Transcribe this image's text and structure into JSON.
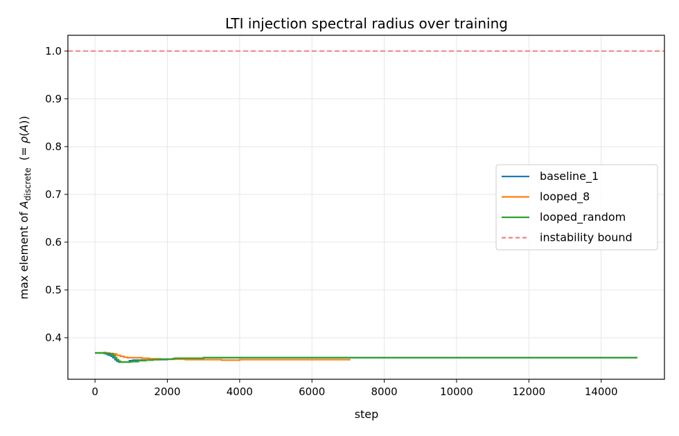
{
  "chart_data": {
    "type": "line",
    "title": "LTI injection spectral radius over training",
    "xlabel": "step",
    "ylabel_parts": {
      "prefix": "max element of ",
      "var": "A",
      "sub": "discrete",
      "suffix_open": "  (= ",
      "rho": "ρ",
      "paren_open": "(",
      "rho_arg": "A",
      "paren_close": "))"
    },
    "xlim": [
      -750,
      15750
    ],
    "ylim": [
      0.313,
      1.033
    ],
    "xticks": [
      0,
      2000,
      4000,
      6000,
      8000,
      10000,
      12000,
      14000
    ],
    "yticks": [
      0.4,
      0.5,
      0.6,
      0.7,
      0.8,
      0.9,
      1.0
    ],
    "grid": true,
    "legend_position": "center-right",
    "series": [
      {
        "name": "baseline_1",
        "color": "#1f77b4",
        "style": "solid",
        "x": [
          0,
          200,
          250,
          300,
          350,
          400,
          450,
          500,
          550,
          600,
          650,
          700,
          900,
          950,
          1000,
          1050,
          1200,
          1500,
          2000,
          2200,
          3000,
          5000,
          8000,
          12000,
          15000
        ],
        "y": [
          0.368,
          0.368,
          0.367,
          0.366,
          0.364,
          0.363,
          0.361,
          0.358,
          0.354,
          0.351,
          0.349,
          0.349,
          0.349,
          0.352,
          0.352,
          0.353,
          0.353,
          0.354,
          0.355,
          0.357,
          0.358,
          0.358,
          0.358,
          0.358,
          0.358
        ]
      },
      {
        "name": "looped_8",
        "color": "#ff7f0e",
        "style": "solid",
        "x": [
          0,
          200,
          250,
          300,
          400,
          500,
          600,
          700,
          800,
          900,
          1000,
          1200,
          1300,
          1500,
          1800,
          2000,
          2500,
          3000,
          3500,
          4000,
          5000,
          6000,
          6800,
          7050
        ],
        "y": [
          0.368,
          0.368,
          0.369,
          0.368,
          0.367,
          0.366,
          0.363,
          0.361,
          0.359,
          0.358,
          0.358,
          0.358,
          0.357,
          0.356,
          0.355,
          0.355,
          0.354,
          0.354,
          0.353,
          0.354,
          0.354,
          0.354,
          0.354,
          0.355
        ]
      },
      {
        "name": "looped_random",
        "color": "#2ca02c",
        "style": "solid",
        "x": [
          0,
          200,
          300,
          400,
          500,
          550,
          600,
          650,
          700,
          800,
          900,
          1000,
          1200,
          1400,
          1600,
          1800,
          2000,
          2150,
          2200,
          2800,
          3000,
          5000,
          8000,
          12000,
          15000
        ],
        "y": [
          0.368,
          0.368,
          0.367,
          0.366,
          0.363,
          0.358,
          0.354,
          0.351,
          0.349,
          0.349,
          0.349,
          0.35,
          0.352,
          0.353,
          0.354,
          0.355,
          0.355,
          0.356,
          0.357,
          0.357,
          0.358,
          0.358,
          0.358,
          0.358,
          0.358
        ]
      },
      {
        "name": "instability bound",
        "color": "#f08080",
        "style": "dashed",
        "hline": 1.0
      }
    ]
  }
}
